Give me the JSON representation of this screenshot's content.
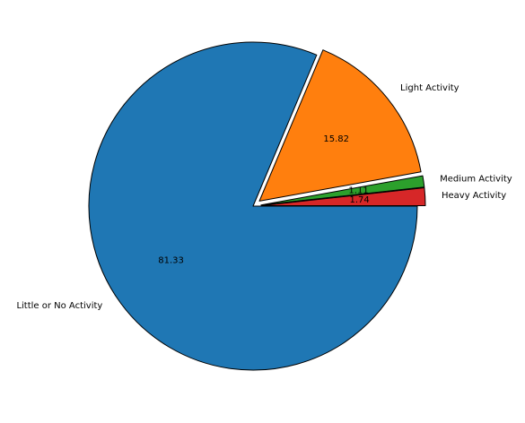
{
  "chart_data": {
    "type": "pie",
    "title": "",
    "slices": [
      {
        "label": "Little or No Activity",
        "value": 81.33,
        "display": "81.33",
        "color": "#1f77b4",
        "exploded": false
      },
      {
        "label": "Light Activity",
        "value": 15.82,
        "display": "15.82",
        "color": "#ff7f0e",
        "exploded": true
      },
      {
        "label": "Medium Activity",
        "value": 1.11,
        "display": "1.11",
        "color": "#2ca02c",
        "exploded": true
      },
      {
        "label": "Heavy Activity",
        "value": 1.74,
        "display": "1.74",
        "color": "#d62728",
        "exploded": true
      }
    ],
    "direction": "clockwise",
    "start_angle_deg": 0,
    "legend": "none"
  }
}
